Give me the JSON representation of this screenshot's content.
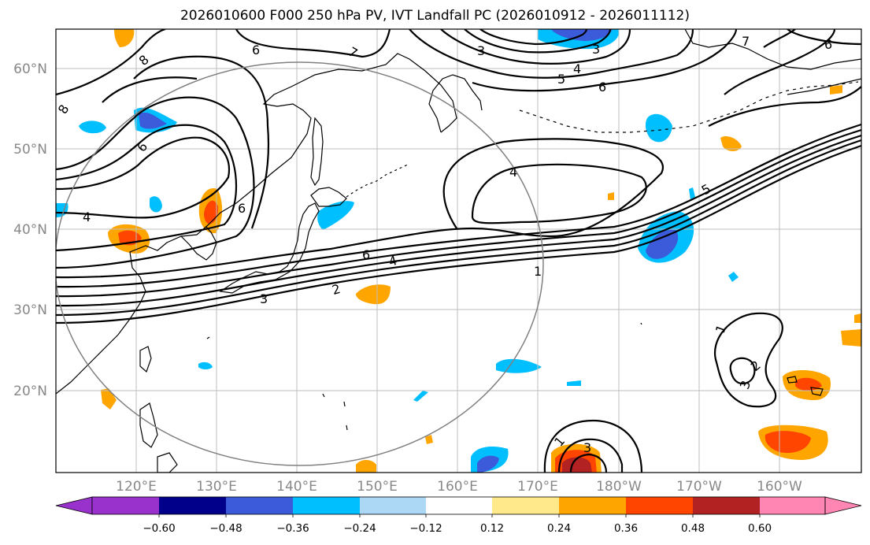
{
  "title": "2026010600 F000 250 hPa PV, IVT Landfall PC (2026010912 - 2026011112)",
  "map": {
    "lat_labels": [
      "60°N",
      "50°N",
      "40°N",
      "30°N",
      "20°N"
    ],
    "lon_labels": [
      "120°E",
      "130°E",
      "140°E",
      "150°E",
      "160°E",
      "170°E",
      "180°W",
      "170°W",
      "160°W"
    ],
    "contour_labels": [
      "6",
      "8",
      "7",
      "7",
      "6",
      "8",
      "6",
      "4",
      "4",
      "5",
      "6",
      "3",
      "3",
      "4",
      "5",
      "6",
      "6",
      "4",
      "2",
      "3",
      "1",
      "1",
      "2",
      "3",
      "1",
      "3"
    ],
    "colors": {
      "neg_060": "#9932cc",
      "neg_048": "#00008b",
      "neg_036": "#3b5bdb",
      "neg_024": "#00bfff",
      "neg_012": "#add8f5",
      "zero": "#ffffff",
      "pos_012": "#ffe98a",
      "pos_024": "#ffa500",
      "pos_036": "#ff4500",
      "pos_048": "#b22222",
      "pos_060": "#ff85b3",
      "contour": "#000000",
      "coast": "#000000",
      "grid": "#bdbdbd",
      "circle": "#808080"
    }
  },
  "colorbar": {
    "ticks": [
      "−0.60",
      "−0.48",
      "−0.36",
      "−0.24",
      "−0.12",
      "0.12",
      "0.24",
      "0.36",
      "0.48",
      "0.60"
    ]
  }
}
